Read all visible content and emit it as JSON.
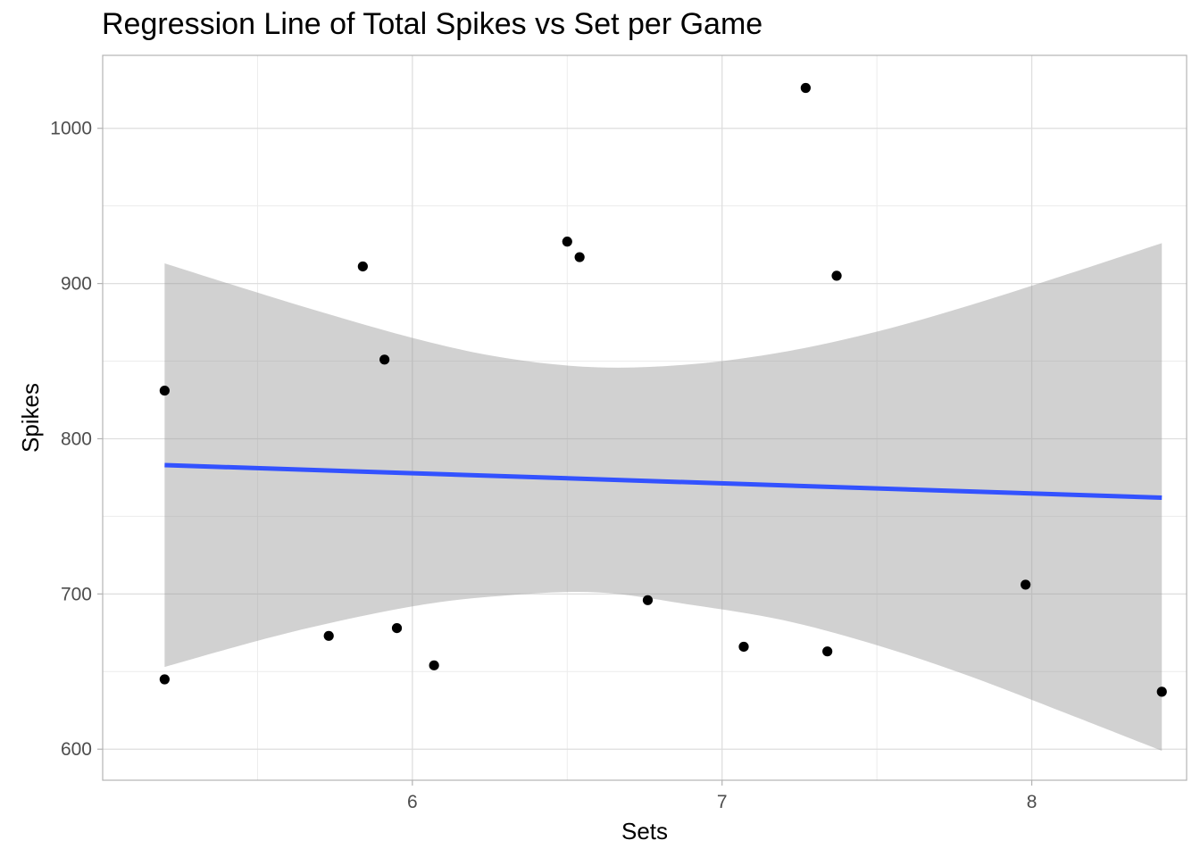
{
  "chart_data": {
    "type": "scatter",
    "title": "Regression Line of Total Spikes vs Set per Game",
    "xlabel": "Sets",
    "ylabel": "Spikes",
    "xlim": [
      5.0,
      8.5
    ],
    "ylim": [
      580,
      1047
    ],
    "x_ticks": [
      6,
      7,
      8
    ],
    "x_tick_labels": [
      "6",
      "7",
      "8"
    ],
    "y_ticks": [
      600,
      700,
      800,
      900,
      1000
    ],
    "y_tick_labels": [
      "600",
      "700",
      "800",
      "900",
      "1000"
    ],
    "grid": true,
    "legend": false,
    "points": [
      {
        "x": 5.2,
        "y": 831
      },
      {
        "x": 5.2,
        "y": 645
      },
      {
        "x": 5.73,
        "y": 673
      },
      {
        "x": 5.84,
        "y": 911
      },
      {
        "x": 5.91,
        "y": 851
      },
      {
        "x": 5.95,
        "y": 678
      },
      {
        "x": 6.07,
        "y": 654
      },
      {
        "x": 6.5,
        "y": 927
      },
      {
        "x": 6.54,
        "y": 917
      },
      {
        "x": 6.76,
        "y": 696
      },
      {
        "x": 7.07,
        "y": 666
      },
      {
        "x": 7.27,
        "y": 1026
      },
      {
        "x": 7.34,
        "y": 663
      },
      {
        "x": 7.37,
        "y": 905
      },
      {
        "x": 7.98,
        "y": 706
      },
      {
        "x": 8.42,
        "y": 637
      }
    ],
    "regression": {
      "x": [
        5.2,
        8.42
      ],
      "y": [
        783,
        762
      ]
    },
    "confidence_band": {
      "x": [
        5.2,
        5.6,
        6.0,
        6.3,
        6.6,
        6.9,
        7.2,
        7.5,
        7.8,
        8.1,
        8.42
      ],
      "upper": [
        913,
        888,
        865,
        852,
        846,
        848,
        856,
        869,
        886,
        905,
        926
      ],
      "lower": [
        653,
        675,
        692,
        699,
        701,
        693,
        683,
        667,
        647,
        624,
        599
      ]
    },
    "colors": {
      "points": "#000000",
      "line": "#3352ff",
      "band": "#999999",
      "grid": "#dedede",
      "panel_border": "#b3b3b3"
    }
  }
}
